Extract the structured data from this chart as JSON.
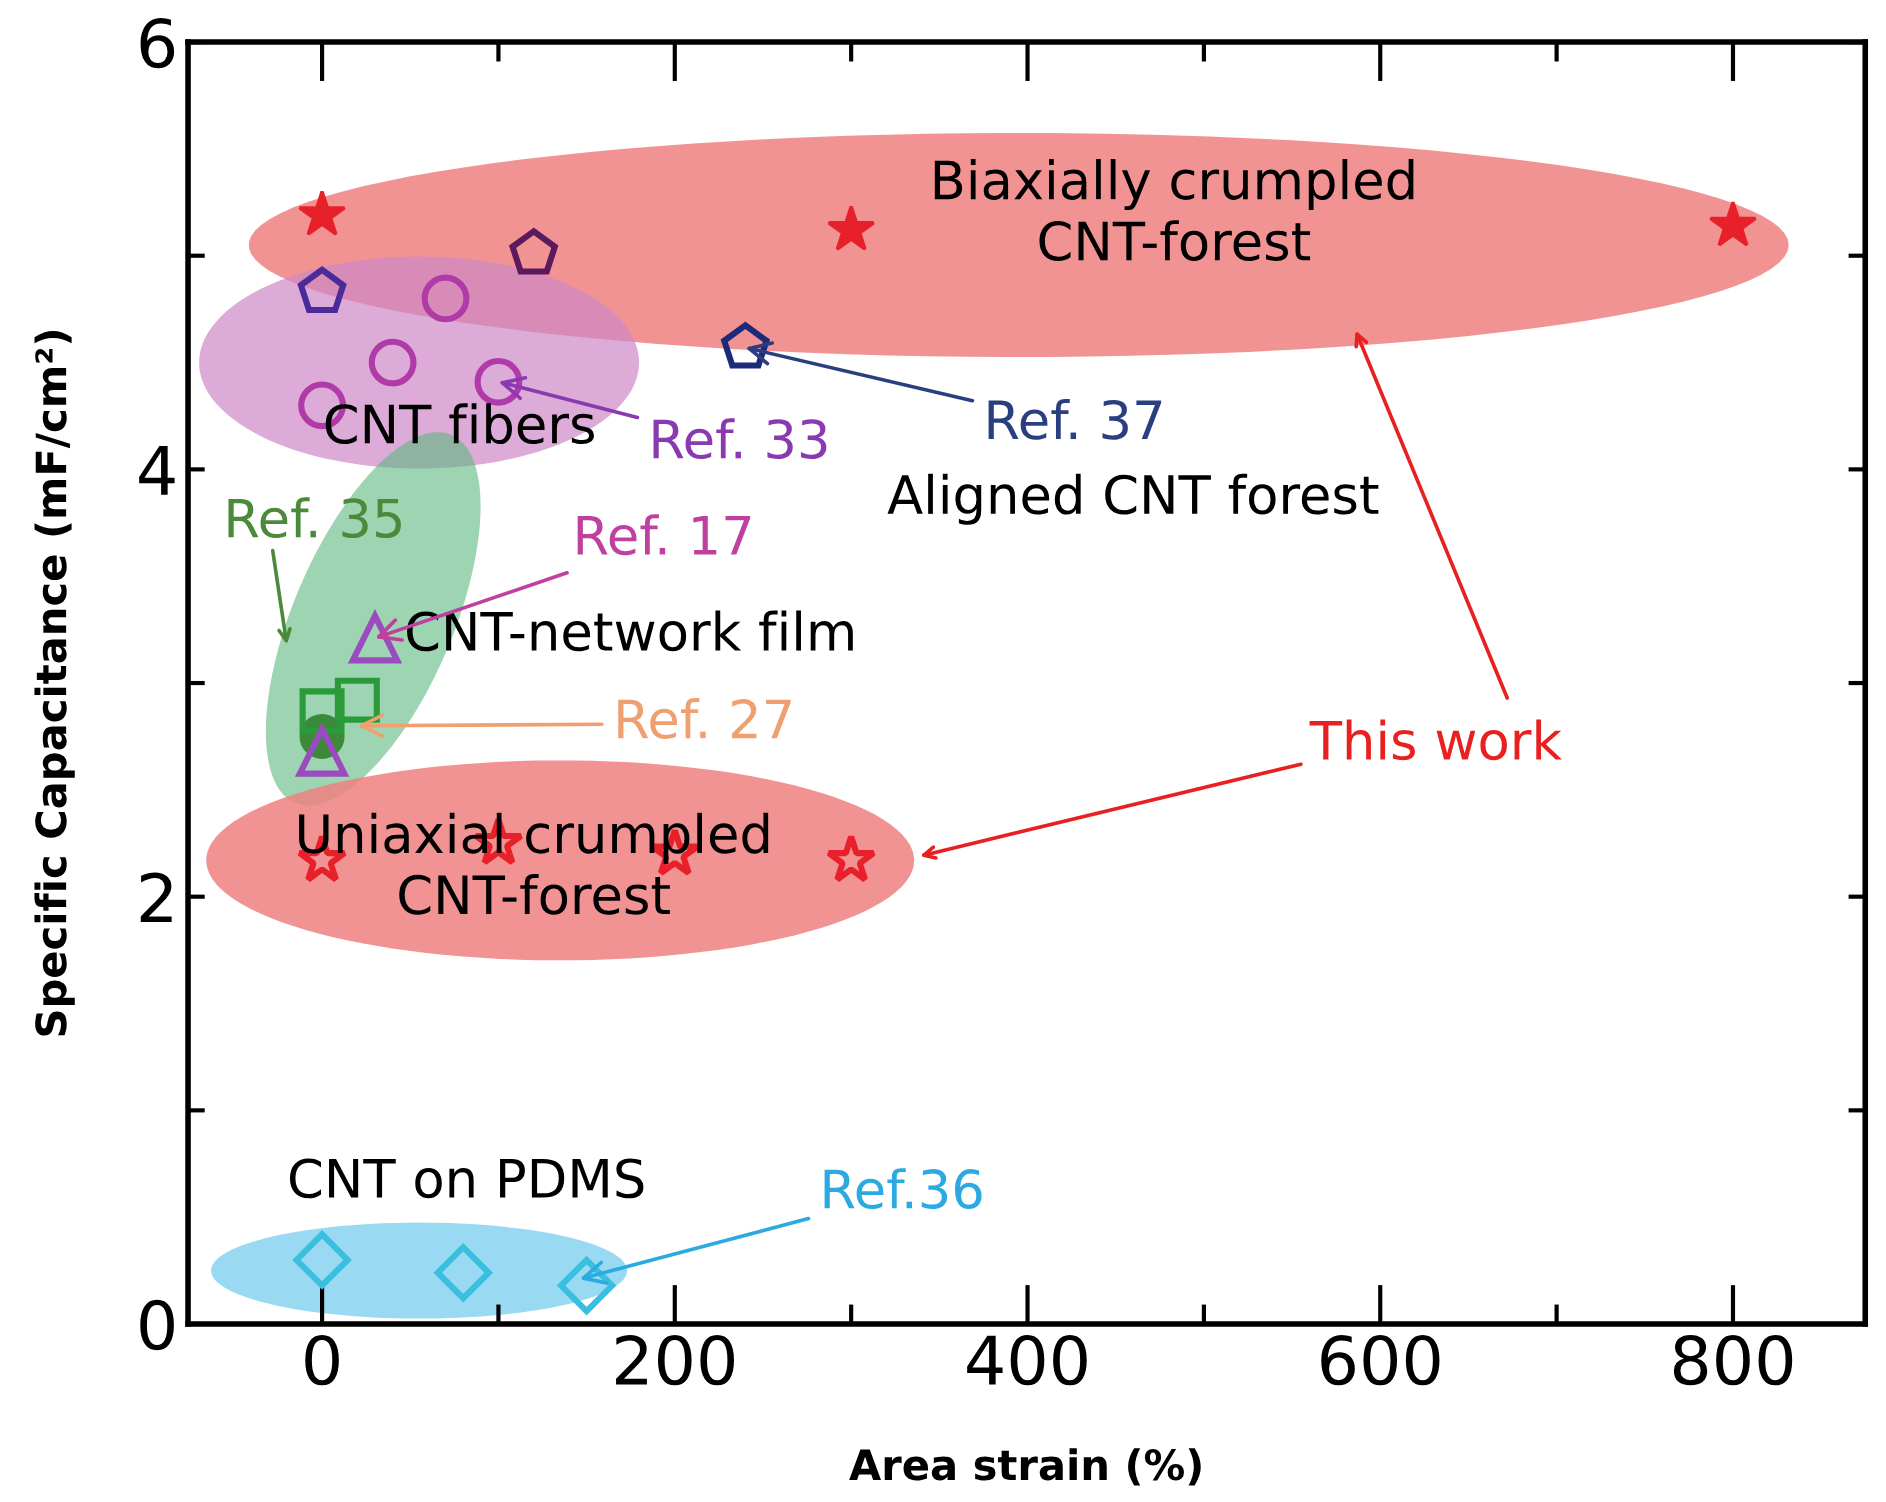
{
  "chart_data": {
    "type": "scatter",
    "xlabel": "Area strain (%)",
    "ylabel": "Specific Capacitance (mF/cm²)",
    "xlim": [
      -76,
      875
    ],
    "ylim": [
      0,
      6
    ],
    "xticks": [
      0,
      {
        "value": 100,
        "label": null
      },
      200,
      {
        "value": 300,
        "label": null
      },
      400,
      {
        "value": 500,
        "label": null
      },
      600,
      {
        "value": 700,
        "label": null
      },
      800
    ],
    "yticks": [
      0,
      {
        "value": 1,
        "label": null
      },
      2,
      {
        "value": 3,
        "label": null
      },
      4,
      {
        "value": 5,
        "label": null
      },
      6
    ],
    "grid": false,
    "legend": false,
    "series": [
      {
        "color": "#e8202a",
        "marker": "star",
        "x": [
          0,
          300,
          800
        ],
        "values": [
          5.19,
          5.12,
          5.14
        ]
      },
      {
        "color": "#e8202a",
        "marker": "star",
        "x": [
          0,
          100,
          200,
          300
        ],
        "values": [
          2.17,
          2.25,
          2.2,
          2.17
        ]
      },
      {
        "color": "#5b1a5e",
        "x": [
          120
        ],
        "values": [
          5.01
        ]
      },
      {
        "color": "#4b2a9a",
        "x": [
          0
        ],
        "values": [
          4.83
        ]
      },
      {
        "color": "#1c2a78",
        "x": [
          240
        ],
        "values": [
          4.57
        ]
      },
      {
        "color": "#b03aa8",
        "marker": "circle",
        "x": [
          0,
          40,
          70,
          100
        ],
        "values": [
          4.3,
          4.5,
          4.8,
          4.41
        ]
      },
      {
        "color": "#3a8a3a",
        "marker": "circle",
        "x": [
          0
        ],
        "values": [
          2.75
        ]
      },
      {
        "color": "#2a9a3a",
        "marker": "square",
        "x": [
          0,
          20
        ],
        "values": [
          2.87,
          2.92
        ]
      },
      {
        "color": "#9b4bc0",
        "marker": "triangle",
        "x": [
          30,
          0
        ],
        "values": [
          3.21,
          2.68
        ]
      },
      {
        "color": "#3bbfe0",
        "marker": "diamond",
        "x": [
          0,
          80,
          150
        ],
        "values": [
          0.3,
          0.24,
          0.18
        ]
      }
    ],
    "annotations": [
      "Biaxially crumpled\nCNT-forest",
      "CNT fibers",
      "Aligned CNT forest",
      "CNT-network film",
      "Uniaxial crumpled\nCNT-forest",
      "CNT on PDMS",
      {
        "text": "Ref. 33",
        "x": 100,
        "y": 4.41
      },
      {
        "text": "Ref. 37",
        "x": 240,
        "y": 4.57
      },
      "Ref. 35",
      {
        "text": "Ref. 17",
        "x": 30,
        "y": 3.21
      },
      {
        "text": "Ref. 27",
        "x": 20,
        "y": 2.8
      },
      "This work",
      {
        "text": "Ref.36",
        "x": 146,
        "y": 0.21
      }
    ]
  }
}
